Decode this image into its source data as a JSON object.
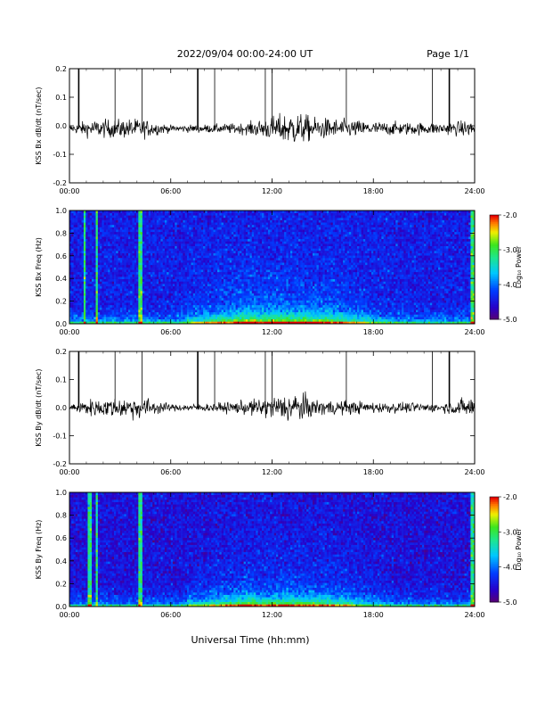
{
  "header": {
    "title": "2022/09/04  00:00-24:00 UT",
    "page": "Page 1/1"
  },
  "footer": {
    "xlabel": "Universal Time (hh:mm)"
  },
  "colors": {
    "ink": "#000000",
    "background": "#ffffff"
  },
  "chart_data": [
    {
      "type": "line",
      "title": "",
      "ylabel": "KSS Bx dB/dt (nT/sec)",
      "xlabel": "",
      "xlim": [
        "00:00",
        "24:00"
      ],
      "ylim": [
        -0.2,
        0.2
      ],
      "x_ticks": [
        "00:00",
        "06:00",
        "12:00",
        "18:00",
        "24:00"
      ],
      "y_ticks": [
        "-0.2",
        "-0.1",
        "0.0",
        "0.1",
        "0.2"
      ],
      "baseline": -0.01,
      "spikes_hours": [
        0.55,
        2.7,
        4.3,
        7.6,
        8.6,
        11.6,
        12.0,
        16.4,
        21.5,
        22.5
      ],
      "activity_envelope": [
        {
          "hour": 0,
          "amplitude": 0.012
        },
        {
          "hour": 1.2,
          "amplitude": 0.03
        },
        {
          "hour": 4.2,
          "amplitude": 0.035
        },
        {
          "hour": 6,
          "amplitude": 0.012
        },
        {
          "hour": 8.5,
          "amplitude": 0.015
        },
        {
          "hour": 10.5,
          "amplitude": 0.02
        },
        {
          "hour": 12.5,
          "amplitude": 0.05
        },
        {
          "hour": 13.3,
          "amplitude": 0.06
        },
        {
          "hour": 14.5,
          "amplitude": 0.04
        },
        {
          "hour": 18,
          "amplitude": 0.025
        },
        {
          "hour": 22,
          "amplitude": 0.02
        },
        {
          "hour": 24,
          "amplitude": 0.03
        }
      ]
    },
    {
      "type": "heatmap",
      "title": "",
      "ylabel": "KSS Bx Freq (Hz)",
      "xlabel": "",
      "xlim": [
        "00:00",
        "24:00"
      ],
      "ylim": [
        0.0,
        1.0
      ],
      "x_ticks": [
        "00:00",
        "06:00",
        "12:00",
        "18:00",
        "24:00"
      ],
      "y_ticks": [
        "0.0",
        "0.2",
        "0.4",
        "0.6",
        "0.8",
        "1.0"
      ],
      "colorbar": {
        "label": "Log₁₀ Power",
        "range": [
          -5.0,
          -2.0
        ],
        "ticks": [
          "-2.0",
          "-3.0",
          "-4.0",
          "-5.0"
        ]
      },
      "bright_stripes_hours": [
        0.9,
        1.6,
        4.2,
        23.9
      ],
      "description_levels": {
        "low_freq_power": -2.6,
        "background_power": -4.4
      }
    },
    {
      "type": "line",
      "title": "",
      "ylabel": "KSS By dB/dt (nT/sec)",
      "xlabel": "",
      "xlim": [
        "00:00",
        "24:00"
      ],
      "ylim": [
        -0.2,
        0.2
      ],
      "x_ticks": [
        "00:00",
        "06:00",
        "12:00",
        "18:00",
        "24:00"
      ],
      "y_ticks": [
        "-0.2",
        "-0.1",
        "0.0",
        "0.1",
        "0.2"
      ],
      "baseline": 0.0,
      "spikes_hours": [
        0.55,
        2.7,
        4.3,
        7.6,
        8.6,
        11.6,
        12.0,
        16.4,
        21.5,
        22.5
      ],
      "activity_envelope": [
        {
          "hour": 0,
          "amplitude": 0.012
        },
        {
          "hour": 1.2,
          "amplitude": 0.03
        },
        {
          "hour": 4.2,
          "amplitude": 0.04
        },
        {
          "hour": 6,
          "amplitude": 0.012
        },
        {
          "hour": 8.5,
          "amplitude": 0.015
        },
        {
          "hour": 10.5,
          "amplitude": 0.025
        },
        {
          "hour": 12.5,
          "amplitude": 0.045
        },
        {
          "hour": 13.4,
          "amplitude": 0.06
        },
        {
          "hour": 14.5,
          "amplitude": 0.03
        },
        {
          "hour": 18,
          "amplitude": 0.02
        },
        {
          "hour": 22,
          "amplitude": 0.015
        },
        {
          "hour": 24,
          "amplitude": 0.04
        }
      ]
    },
    {
      "type": "heatmap",
      "title": "",
      "ylabel": "KSS By Freq (Hz)",
      "xlabel": "",
      "xlim": [
        "00:00",
        "24:00"
      ],
      "ylim": [
        0.0,
        1.0
      ],
      "x_ticks": [
        "00:00",
        "06:00",
        "12:00",
        "18:00",
        "24:00"
      ],
      "y_ticks": [
        "0.0",
        "0.2",
        "0.4",
        "0.6",
        "0.8",
        "1.0"
      ],
      "colorbar": {
        "label": "Log₁₀ Power",
        "range": [
          -5.0,
          -2.0
        ],
        "ticks": [
          "-2.0",
          "-3.0",
          "-4.0",
          "-5.0"
        ]
      },
      "bright_stripes_hours": [
        1.2,
        1.6,
        4.2,
        23.9
      ],
      "description_levels": {
        "low_freq_power": -2.8,
        "background_power": -4.5
      }
    }
  ]
}
